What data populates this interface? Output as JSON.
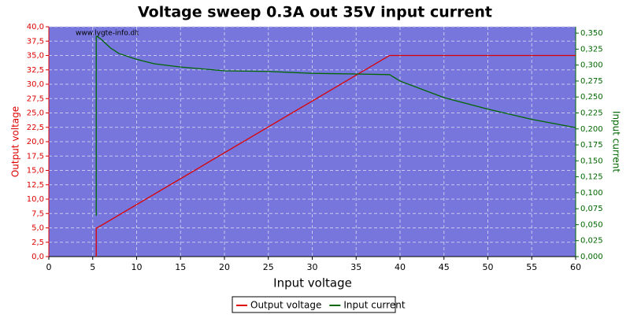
{
  "chart_data": {
    "type": "line",
    "title": "Voltage sweep 0.3A out 35V input current",
    "watermark": "www.lygte-info.dk",
    "x_label": "Input voltage",
    "y_label": "Output voltage",
    "y2_label": "Input current",
    "xlim": [
      0,
      60
    ],
    "xticks": [
      0,
      5,
      10,
      15,
      20,
      25,
      30,
      35,
      40,
      45,
      50,
      55,
      60
    ],
    "ylim": [
      0,
      40
    ],
    "yticks": [
      {
        "value": 0,
        "label": "0,0"
      },
      {
        "value": 2.5,
        "label": "2,5"
      },
      {
        "value": 5,
        "label": "5,0"
      },
      {
        "value": 7.5,
        "label": "7,5"
      },
      {
        "value": 10,
        "label": "10,0"
      },
      {
        "value": 12.5,
        "label": "12,5"
      },
      {
        "value": 15,
        "label": "15,0"
      },
      {
        "value": 17.5,
        "label": "17,5"
      },
      {
        "value": 20,
        "label": "20,0"
      },
      {
        "value": 22.5,
        "label": "22,5"
      },
      {
        "value": 25,
        "label": "25,0"
      },
      {
        "value": 27.5,
        "label": "27,5"
      },
      {
        "value": 30,
        "label": "30,0"
      },
      {
        "value": 32.5,
        "label": "32,5"
      },
      {
        "value": 35,
        "label": "35,0"
      },
      {
        "value": 37.5,
        "label": "37,5"
      },
      {
        "value": 40,
        "label": "40,0"
      }
    ],
    "y2lim": [
      0,
      0.36
    ],
    "y2ticks": [
      {
        "value": 0,
        "label": "0,000"
      },
      {
        "value": 0.025,
        "label": "0,025"
      },
      {
        "value": 0.05,
        "label": "0,050"
      },
      {
        "value": 0.075,
        "label": "0,075"
      },
      {
        "value": 0.1,
        "label": "0,100"
      },
      {
        "value": 0.125,
        "label": "0,125"
      },
      {
        "value": 0.15,
        "label": "0,150"
      },
      {
        "value": 0.175,
        "label": "0,175"
      },
      {
        "value": 0.2,
        "label": "0,200"
      },
      {
        "value": 0.225,
        "label": "0,225"
      },
      {
        "value": 0.25,
        "label": "0,250"
      },
      {
        "value": 0.275,
        "label": "0,275"
      },
      {
        "value": 0.3,
        "label": "0,300"
      },
      {
        "value": 0.325,
        "label": "0,325"
      },
      {
        "value": 0.35,
        "label": "0,350"
      }
    ],
    "grid": true,
    "legend": "bottom",
    "series": [
      {
        "name": "Output voltage",
        "color": "#dd0000",
        "x": [
          5.4,
          5.4,
          5.5,
          38.8,
          45,
          50,
          55,
          60
        ],
        "values": [
          0,
          5,
          5,
          35,
          35,
          35,
          35,
          35
        ]
      },
      {
        "name": "Input current",
        "color": "#006600",
        "axis": "y2",
        "x": [
          5.4,
          5.4,
          5.5,
          6,
          7,
          8,
          10,
          12,
          15,
          20,
          25,
          30,
          35,
          38.8,
          40,
          45,
          50,
          55,
          60
        ],
        "values": [
          0.064,
          0.345,
          0.345,
          0.34,
          0.327,
          0.318,
          0.309,
          0.302,
          0.297,
          0.291,
          0.29,
          0.287,
          0.286,
          0.285,
          0.275,
          0.249,
          0.231,
          0.215,
          0.202
        ]
      }
    ]
  }
}
